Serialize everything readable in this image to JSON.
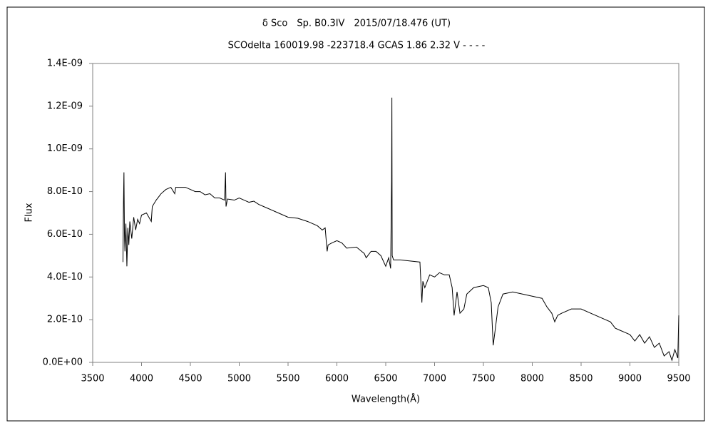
{
  "chart_data": {
    "type": "line",
    "title": "δ Sco　Sp. B0.3IV　2015/07/18.476 (UT)",
    "subtitle": "SCOdelta 160019.98 -223718.4 GCAS 1.86 2.32 V - - - -",
    "x_label": "Wavelength(Å)",
    "y_label": "Flux",
    "grid": false,
    "xlim": [
      3500,
      9500
    ],
    "xticks": [
      3500,
      4000,
      4500,
      5000,
      5500,
      6000,
      6500,
      7000,
      7500,
      8000,
      8500,
      9000,
      9500
    ],
    "ylim": [
      0,
      1.4e-09
    ],
    "yticks": [
      {
        "value": 0,
        "label": "0.0E+00"
      },
      {
        "value": 2e-10,
        "label": "2.0E-10"
      },
      {
        "value": 4e-10,
        "label": "4.0E-10"
      },
      {
        "value": 6e-10,
        "label": "6.0E-10"
      },
      {
        "value": 8e-10,
        "label": "8.0E-10"
      },
      {
        "value": 1e-09,
        "label": "1.0E-09"
      },
      {
        "value": 1.2e-09,
        "label": "1.2E-09"
      },
      {
        "value": 1.4e-09,
        "label": "1.4E-09"
      }
    ],
    "x": [
      3810,
      3815,
      3820,
      3825,
      3830,
      3840,
      3850,
      3860,
      3870,
      3880,
      3900,
      3920,
      3940,
      3960,
      3980,
      4000,
      4050,
      4100,
      4110,
      4150,
      4200,
      4250,
      4300,
      4340,
      4350,
      4400,
      4450,
      4500,
      4550,
      4600,
      4650,
      4700,
      4750,
      4800,
      4850,
      4860,
      4865,
      4880,
      4950,
      5000,
      5050,
      5100,
      5150,
      5200,
      5300,
      5400,
      5500,
      5600,
      5700,
      5800,
      5850,
      5880,
      5900,
      5910,
      5950,
      6000,
      6050,
      6100,
      6200,
      6280,
      6300,
      6350,
      6400,
      6450,
      6500,
      6530,
      6550,
      6560,
      6563,
      6566,
      6580,
      6650,
      6750,
      6850,
      6870,
      6880,
      6900,
      6950,
      7000,
      7050,
      7100,
      7150,
      7180,
      7200,
      7230,
      7260,
      7300,
      7330,
      7400,
      7500,
      7550,
      7580,
      7600,
      7620,
      7650,
      7700,
      7800,
      7900,
      8000,
      8100,
      8150,
      8200,
      8230,
      8260,
      8300,
      8400,
      8500,
      8600,
      8700,
      8800,
      8850,
      8900,
      8950,
      9000,
      9050,
      9100,
      9150,
      9200,
      9250,
      9300,
      9350,
      9400,
      9430,
      9460,
      9490,
      9500
    ],
    "series": [
      {
        "name": "Flux",
        "color": "#000000",
        "values": [
          4.7e-10,
          7.4e-10,
          8.9e-10,
          6e-10,
          5.2e-10,
          6.5e-10,
          4.5e-10,
          6.3e-10,
          5.5e-10,
          6.6e-10,
          5.8e-10,
          6.8e-10,
          6.2e-10,
          6.7e-10,
          6.5e-10,
          6.9e-10,
          7e-10,
          6.6e-10,
          7.3e-10,
          7.6e-10,
          7.9e-10,
          8.1e-10,
          8.2e-10,
          7.9e-10,
          8.2e-10,
          8.2e-10,
          8.2e-10,
          8.1e-10,
          8e-10,
          8e-10,
          7.85e-10,
          7.9e-10,
          7.7e-10,
          7.7e-10,
          7.6e-10,
          8.9e-10,
          7.3e-10,
          7.65e-10,
          7.6e-10,
          7.7e-10,
          7.6e-10,
          7.5e-10,
          7.55e-10,
          7.4e-10,
          7.2e-10,
          7e-10,
          6.8e-10,
          6.75e-10,
          6.6e-10,
          6.4e-10,
          6.2e-10,
          6.3e-10,
          5.2e-10,
          5.5e-10,
          5.6e-10,
          5.7e-10,
          5.6e-10,
          5.35e-10,
          5.4e-10,
          5.1e-10,
          4.9e-10,
          5.2e-10,
          5.2e-10,
          5e-10,
          4.5e-10,
          4.9e-10,
          4.4e-10,
          8.5e-10,
          1.24e-09,
          5e-10,
          4.8e-10,
          4.8e-10,
          4.75e-10,
          4.7e-10,
          2.8e-10,
          3.8e-10,
          3.5e-10,
          4.1e-10,
          4e-10,
          4.2e-10,
          4.1e-10,
          4.1e-10,
          3.5e-10,
          2.2e-10,
          3.3e-10,
          2.3e-10,
          2.5e-10,
          3.2e-10,
          3.5e-10,
          3.6e-10,
          3.5e-10,
          2.8e-10,
          8e-11,
          1.5e-10,
          2.6e-10,
          3.2e-10,
          3.3e-10,
          3.2e-10,
          3.1e-10,
          3e-10,
          2.6e-10,
          2.3e-10,
          1.9e-10,
          2.2e-10,
          2.3e-10,
          2.5e-10,
          2.5e-10,
          2.3e-10,
          2.1e-10,
          1.9e-10,
          1.6e-10,
          1.5e-10,
          1.4e-10,
          1.3e-10,
          1e-10,
          1.3e-10,
          9e-11,
          1.2e-10,
          7e-11,
          9e-11,
          3e-11,
          5e-11,
          1e-11,
          6e-11,
          2e-11,
          2.2e-10
        ]
      }
    ]
  }
}
